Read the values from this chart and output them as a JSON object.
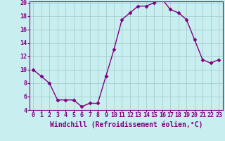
{
  "x": [
    0,
    1,
    2,
    3,
    4,
    5,
    6,
    7,
    8,
    9,
    10,
    11,
    12,
    13,
    14,
    15,
    16,
    17,
    18,
    19,
    20,
    21,
    22,
    23
  ],
  "y": [
    10,
    9,
    8,
    5.5,
    5.5,
    5.5,
    4.5,
    5,
    5,
    9,
    13,
    17.5,
    18.5,
    19.5,
    19.5,
    20,
    20.5,
    19,
    18.5,
    17.5,
    14.5,
    11.5,
    11,
    11.5
  ],
  "line_color": "#800080",
  "marker": "D",
  "marker_size": 2.5,
  "background_color": "#c8eef0",
  "grid_color": "#a0c8c8",
  "xlabel": "Windchill (Refroidissement éolien,°C)",
  "xlim_min": -0.5,
  "xlim_max": 23.5,
  "ylim_min": 4,
  "ylim_max": 20,
  "yticks": [
    4,
    6,
    8,
    10,
    12,
    14,
    16,
    18,
    20
  ],
  "xticks": [
    0,
    1,
    2,
    3,
    4,
    5,
    6,
    7,
    8,
    9,
    10,
    11,
    12,
    13,
    14,
    15,
    16,
    17,
    18,
    19,
    20,
    21,
    22,
    23
  ],
  "xlabel_fontsize": 7,
  "tick_fontsize": 6,
  "line_width": 1.0,
  "axis_color": "#800080",
  "marker_style": "D"
}
